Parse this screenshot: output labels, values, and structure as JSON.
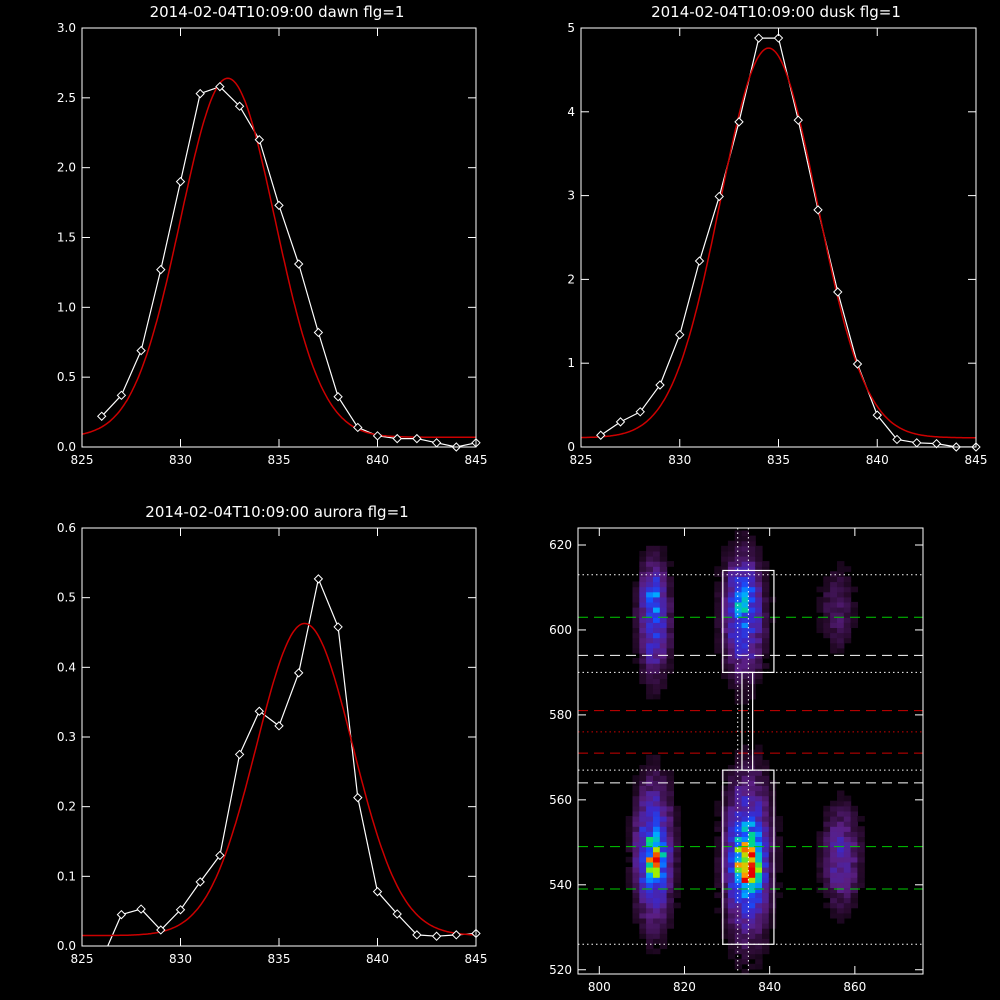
{
  "colors": {
    "background": "#000000",
    "axis": "#ffffff",
    "observed": "#ffffff",
    "fit": "#cc0000"
  },
  "chart_data": [
    {
      "type": "line",
      "title": "2014-02-04T10:09:00 dawn flg=1",
      "xlim": [
        825,
        845
      ],
      "ylim": [
        0,
        3.0
      ],
      "xticks": [
        "825",
        "830",
        "835",
        "840",
        "845"
      ],
      "yticks": [
        "0.0",
        "0.5",
        "1.0",
        "1.5",
        "2.0",
        "2.5",
        "3.0"
      ],
      "series": [
        {
          "marker": "diamond",
          "x": [
            826,
            827,
            828,
            829,
            830,
            831,
            832,
            833,
            834,
            835,
            836,
            837,
            838,
            839,
            840,
            841,
            842,
            843,
            844,
            845
          ],
          "y": [
            0.22,
            0.37,
            0.69,
            1.27,
            1.9,
            2.53,
            2.58,
            2.44,
            2.2,
            1.73,
            1.31,
            0.82,
            0.36,
            0.14,
            0.08,
            0.06,
            0.06,
            0.03,
            0.0,
            0.03
          ]
        },
        {
          "gaussian": {
            "a": 2.57,
            "mu": 832.4,
            "sigma": 2.4,
            "c": 0.07
          }
        }
      ]
    },
    {
      "type": "line",
      "title": "2014-02-04T10:09:00 dusk flg=1",
      "xlim": [
        825,
        845
      ],
      "ylim": [
        0,
        5
      ],
      "xticks": [
        "825",
        "830",
        "835",
        "840",
        "845"
      ],
      "yticks": [
        "0",
        "1",
        "2",
        "3",
        "4",
        "5"
      ],
      "series": [
        {
          "marker": "diamond",
          "x": [
            826,
            827,
            828,
            829,
            830,
            831,
            832,
            833,
            834,
            835,
            836,
            837,
            838,
            839,
            840,
            841,
            842,
            843,
            844,
            845
          ],
          "y": [
            0.14,
            0.3,
            0.42,
            0.74,
            1.34,
            2.22,
            2.99,
            3.88,
            4.88,
            4.88,
            3.9,
            2.83,
            1.85,
            0.99,
            0.38,
            0.09,
            0.05,
            0.04,
            0.0,
            0.0
          ]
        },
        {
          "gaussian": {
            "a": 4.65,
            "mu": 834.5,
            "sigma": 2.45,
            "c": 0.11
          }
        }
      ]
    },
    {
      "type": "line",
      "title": "2014-02-04T10:09:00 aurora flg=1",
      "xlim": [
        825,
        845
      ],
      "ylim": [
        0,
        0.6
      ],
      "xticks": [
        "825",
        "830",
        "835",
        "840",
        "845"
      ],
      "yticks": [
        "0.0",
        "0.1",
        "0.2",
        "0.3",
        "0.4",
        "0.5",
        "0.6"
      ],
      "series": [
        {
          "marker": "diamond",
          "x": [
            826,
            827,
            828,
            829,
            830,
            831,
            832,
            833,
            834,
            835,
            836,
            837,
            838,
            839,
            840,
            841,
            842,
            843,
            844,
            845
          ],
          "y": [
            -0.02,
            0.045,
            0.053,
            0.023,
            0.052,
            0.092,
            0.13,
            0.275,
            0.337,
            0.316,
            0.392,
            0.527,
            0.458,
            0.213,
            0.078,
            0.046,
            0.016,
            0.014,
            0.016,
            0.018
          ]
        },
        {
          "gaussian": {
            "a": 0.448,
            "mu": 836.3,
            "sigma": 2.45,
            "c": 0.015
          }
        }
      ]
    },
    {
      "type": "heatmap",
      "title": "",
      "xlim": [
        795,
        876
      ],
      "ylim": [
        519,
        624
      ],
      "xticks": [
        "800",
        "820",
        "840",
        "860"
      ],
      "yticks": [
        "520",
        "540",
        "560",
        "580",
        "600",
        "620"
      ],
      "blobs": [
        {
          "x": 812,
          "y": 547,
          "sx": 2.8,
          "sy": 10.5,
          "amp": 0.55
        },
        {
          "x": 812,
          "y": 545,
          "sx": 1.8,
          "sy": 3.0,
          "amp": 0.3
        },
        {
          "x": 834,
          "y": 546,
          "sx": 3.5,
          "sy": 12.0,
          "amp": 0.55
        },
        {
          "x": 834,
          "y": 544,
          "sx": 2.0,
          "sy": 4.5,
          "amp": 0.55
        },
        {
          "x": 856,
          "y": 546,
          "sx": 3.0,
          "sy": 8.0,
          "amp": 0.28
        },
        {
          "x": 812,
          "y": 602,
          "sx": 2.5,
          "sy": 9.0,
          "amp": 0.4
        },
        {
          "x": 812,
          "y": 608,
          "sx": 1.6,
          "sy": 3.0,
          "amp": 0.2
        },
        {
          "x": 833,
          "y": 603,
          "sx": 3.2,
          "sy": 9.5,
          "amp": 0.45
        },
        {
          "x": 833,
          "y": 608,
          "sx": 1.6,
          "sy": 3.5,
          "amp": 0.2
        },
        {
          "x": 855,
          "y": 604,
          "sx": 3.0,
          "sy": 7.0,
          "amp": 0.15
        }
      ],
      "boxes": [
        [
          829,
          841,
          590,
          614
        ],
        [
          829,
          841,
          526,
          567
        ],
        [
          833.5,
          836,
          567,
          590
        ]
      ],
      "vlines": [
        832.5,
        835.0
      ],
      "hlines": [
        {
          "y": 613,
          "color": "#ffffff",
          "style": "dotted"
        },
        {
          "y": 603,
          "color": "#00cc00",
          "style": "dashed"
        },
        {
          "y": 594,
          "color": "#ffffff",
          "style": "dashed"
        },
        {
          "y": 590,
          "color": "#ffffff",
          "style": "dotted"
        },
        {
          "y": 581,
          "color": "#cc0000",
          "style": "dashed"
        },
        {
          "y": 576,
          "color": "#cc0000",
          "style": "dotted"
        },
        {
          "y": 571,
          "color": "#cc0000",
          "style": "dashed"
        },
        {
          "y": 567,
          "color": "#ffffff",
          "style": "dotted"
        },
        {
          "y": 564,
          "color": "#ffffff",
          "style": "dashed"
        },
        {
          "y": 549,
          "color": "#00cc00",
          "style": "dashed"
        },
        {
          "y": 539,
          "color": "#00cc00",
          "style": "dashed"
        },
        {
          "y": 526,
          "color": "#ffffff",
          "style": "dotted"
        }
      ]
    }
  ]
}
